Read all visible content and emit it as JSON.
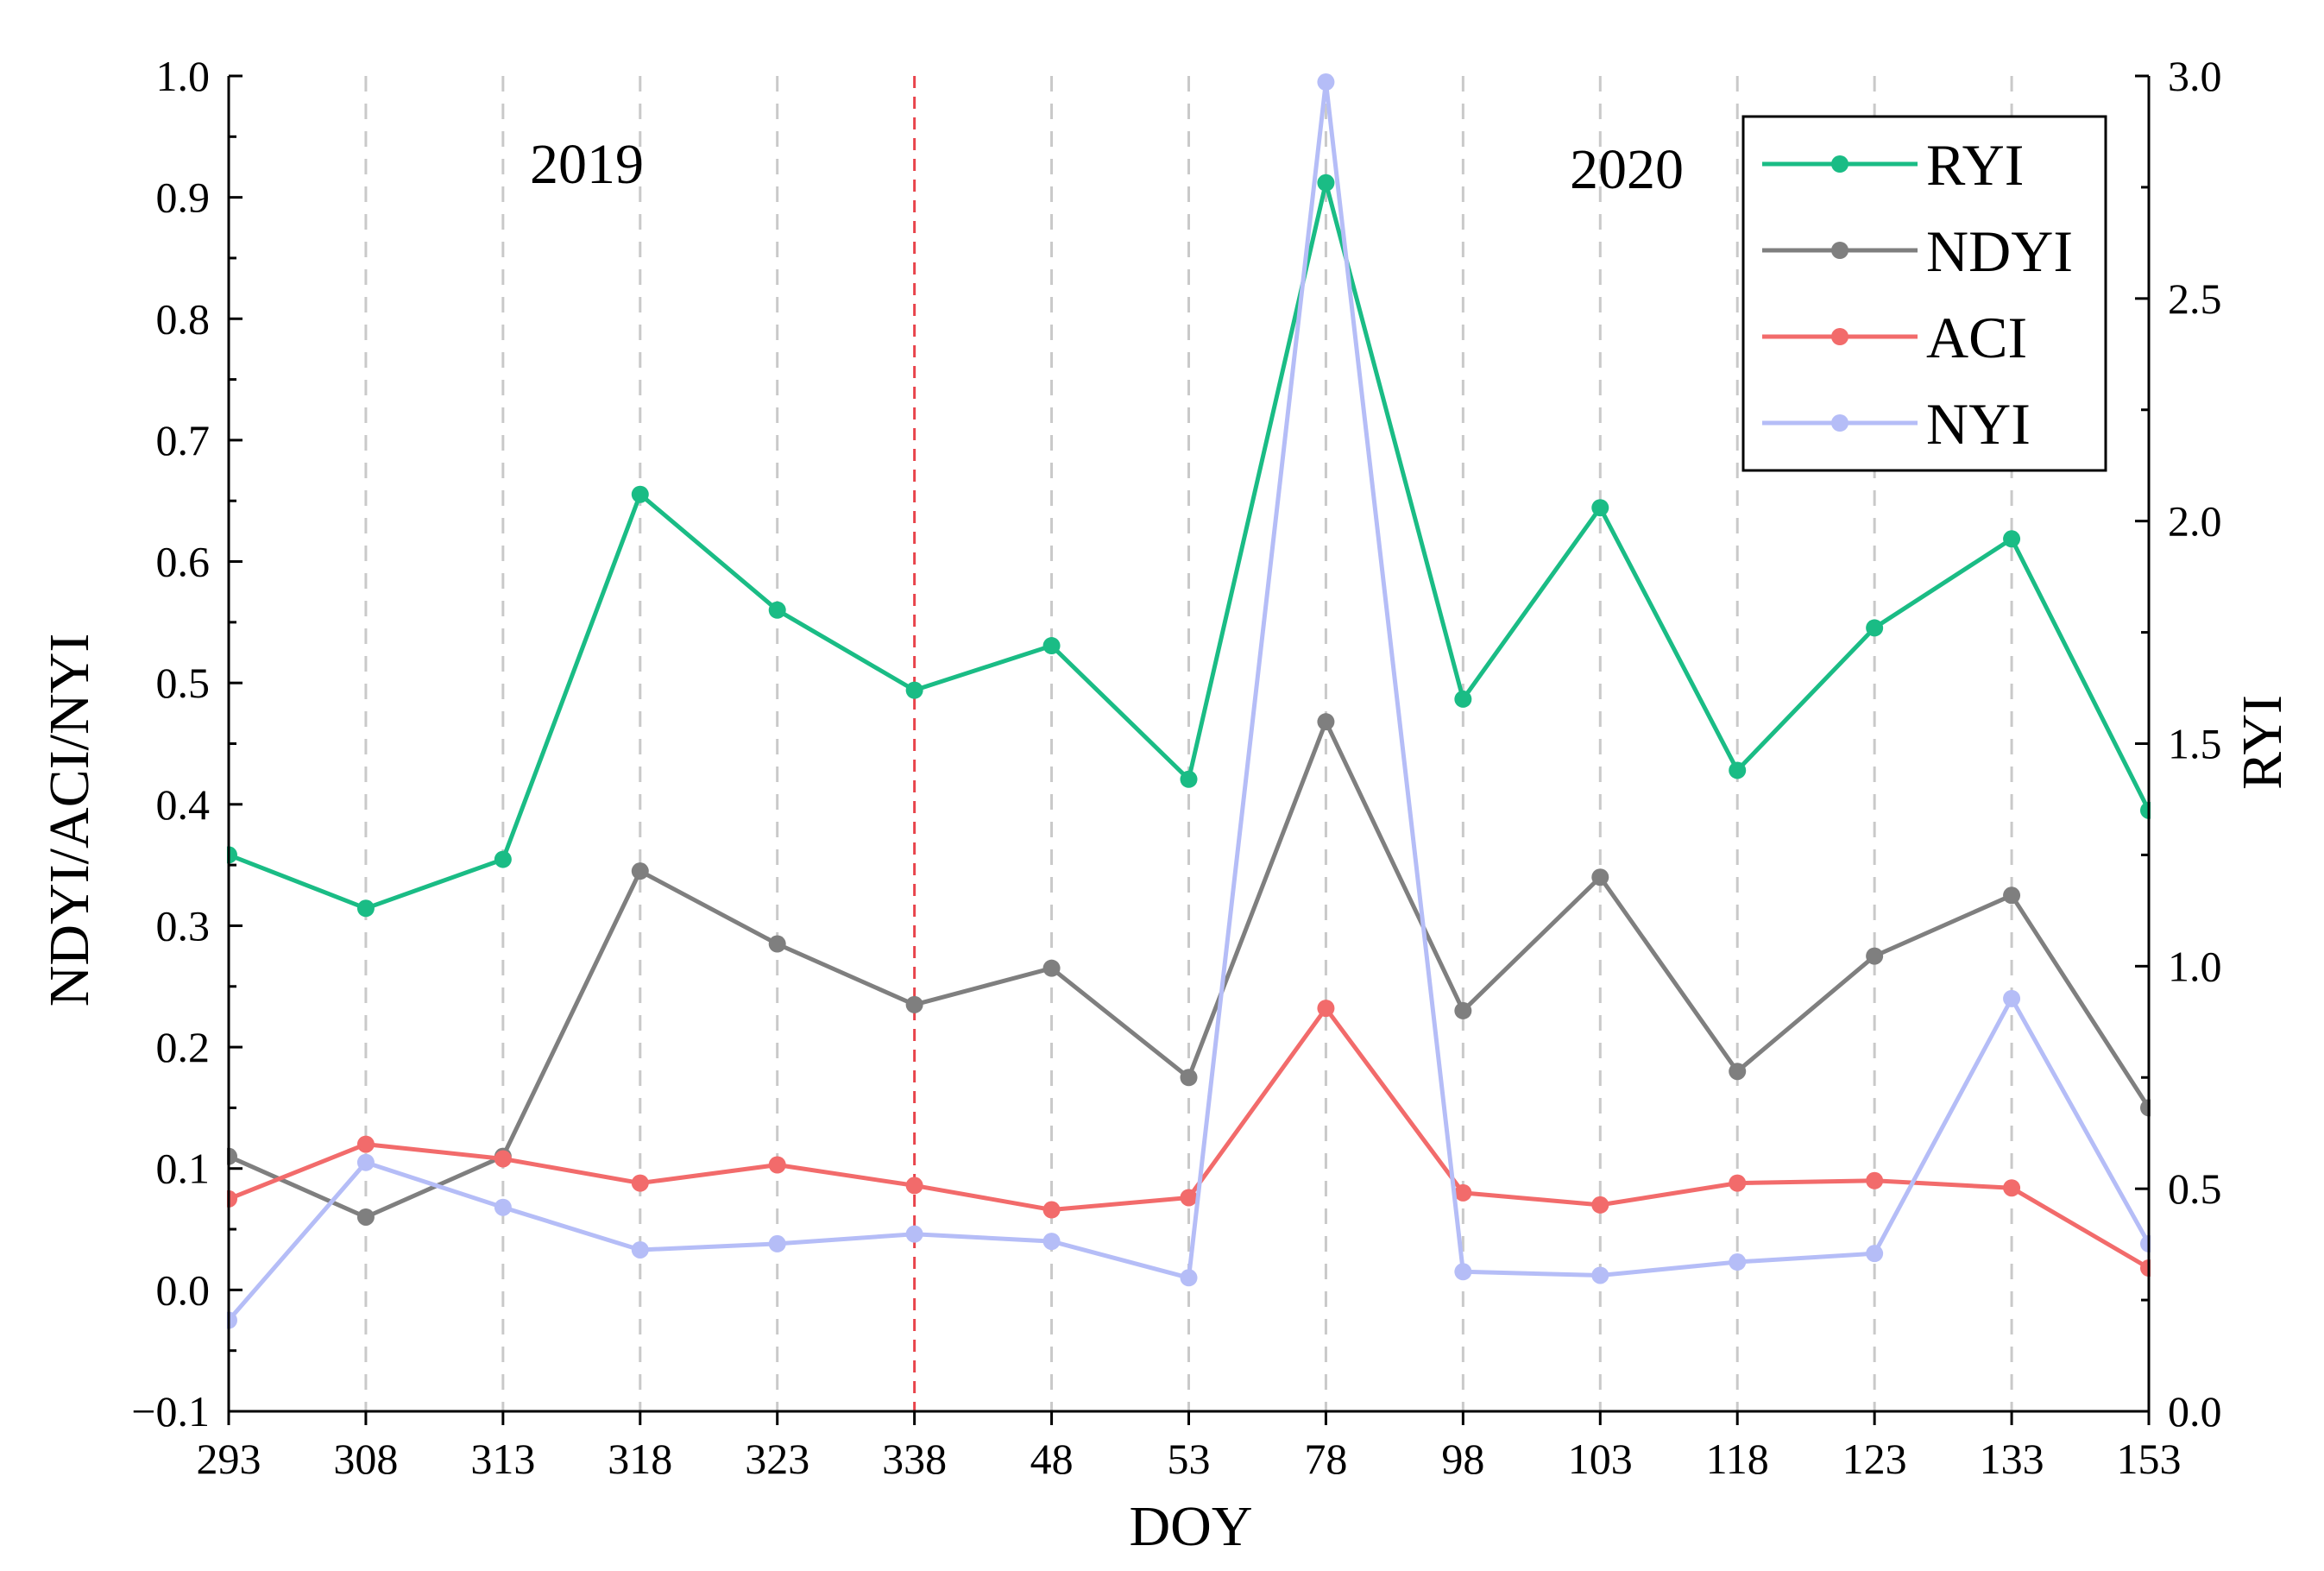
{
  "chart_data": {
    "type": "line",
    "xlabel": "DOY",
    "ylabel_left": "NDYI/ACI/NYI",
    "ylabel_right": "RYI",
    "categories": [
      "293",
      "308",
      "313",
      "318",
      "323",
      "338",
      "48",
      "53",
      "78",
      "98",
      "103",
      "118",
      "123",
      "133",
      "153"
    ],
    "ylim_left": [
      -0.1,
      1.0
    ],
    "yticks_left": [
      "−0.1",
      "0.0",
      "0.1",
      "0.2",
      "0.3",
      "0.4",
      "0.5",
      "0.6",
      "0.7",
      "0.8",
      "0.9",
      "1.0"
    ],
    "ylim_right": [
      0.0,
      3.0
    ],
    "yticks_right": [
      "0.0",
      "0.5",
      "1.0",
      "1.5",
      "2.0",
      "2.5",
      "3.0"
    ],
    "year_divider_category": "338",
    "year_labels": [
      "2019",
      "2020"
    ],
    "series": [
      {
        "name": "RYI",
        "axis": "right",
        "color": "#1abc85",
        "values": [
          1.25,
          1.13,
          1.24,
          2.06,
          1.8,
          1.62,
          1.72,
          1.42,
          2.76,
          1.6,
          2.03,
          1.44,
          1.76,
          1.96,
          1.35
        ]
      },
      {
        "name": "NDYI",
        "axis": "left",
        "color": "#7f7f7f",
        "values": [
          0.11,
          0.06,
          0.11,
          0.345,
          0.285,
          0.235,
          0.265,
          0.175,
          0.468,
          0.23,
          0.34,
          0.18,
          0.275,
          0.325,
          0.15
        ]
      },
      {
        "name": "ACI",
        "axis": "left",
        "color": "#f26b6b",
        "values": [
          0.075,
          0.12,
          0.108,
          0.088,
          0.103,
          0.086,
          0.066,
          0.076,
          0.232,
          0.08,
          0.07,
          0.088,
          0.09,
          0.084,
          0.018
        ]
      },
      {
        "name": "NYI",
        "axis": "left",
        "color": "#b5bdf7",
        "values": [
          -0.025,
          0.105,
          0.068,
          0.033,
          0.038,
          0.046,
          0.04,
          0.01,
          0.995,
          0.015,
          0.012,
          0.023,
          0.03,
          0.24,
          0.038
        ]
      }
    ],
    "legend_position": "top-right",
    "grid": "vertical-dashed"
  }
}
